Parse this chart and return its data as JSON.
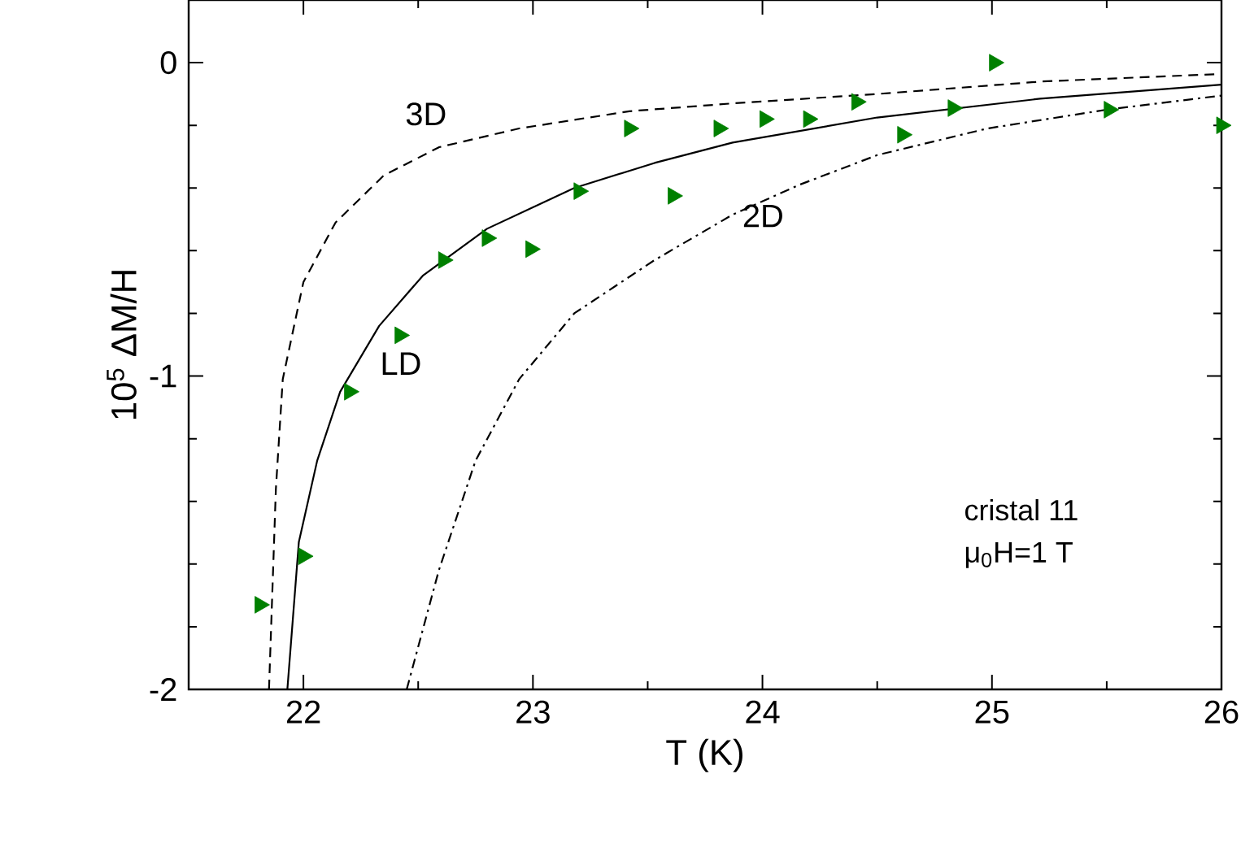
{
  "chart_data": {
    "type": "scatter",
    "xlabel": "T (K)",
    "ylabel": "10$^{5}$ ΔM/H",
    "xlim": [
      21.5,
      26
    ],
    "ylim": [
      -2,
      0.2
    ],
    "xticks": [
      22,
      23,
      24,
      25,
      26
    ],
    "yticks": [
      -2,
      -1,
      0
    ],
    "grid": false,
    "legend": false,
    "marker": "triangle",
    "annotations": [
      "cristal 11",
      "μ$_{0}$H=1 T"
    ],
    "series": [
      {
        "color": "#008000",
        "x": [
          21.81,
          22.0,
          22.2,
          22.42,
          22.61,
          22.8,
          22.99,
          23.2,
          23.42,
          23.61,
          23.81,
          24.01,
          24.2,
          24.41,
          24.61,
          24.83,
          25.01,
          25.51,
          26.0
        ],
        "values": [
          -1.73,
          -1.575,
          -1.05,
          -0.87,
          -0.63,
          -0.56,
          -0.595,
          -0.41,
          -0.21,
          -0.425,
          -0.21,
          -0.18,
          -0.18,
          -0.125,
          -0.23,
          -0.145,
          0.0,
          -0.15,
          -0.2
        ]
      },
      {
        "type": "line",
        "name": "3D",
        "color": "#000000",
        "line_style": "dashed",
        "marker": "none",
        "x": [
          21.85,
          21.88,
          21.91,
          22.0,
          22.14,
          22.35,
          22.59,
          22.94,
          23.42,
          23.87,
          24.5,
          25.22,
          26.0
        ],
        "values": [
          -2.0,
          -1.36,
          -1.01,
          -0.7,
          -0.51,
          -0.36,
          -0.27,
          -0.21,
          -0.155,
          -0.13,
          -0.1,
          -0.06,
          -0.036
        ]
      },
      {
        "type": "line",
        "name": "LD",
        "color": "#000000",
        "line_style": "solid",
        "marker": "none",
        "x": [
          21.93,
          21.98,
          22.06,
          22.16,
          22.33,
          22.52,
          22.8,
          23.18,
          23.53,
          23.87,
          24.5,
          25.21,
          26.0
        ],
        "values": [
          -2.0,
          -1.53,
          -1.27,
          -1.05,
          -0.84,
          -0.68,
          -0.53,
          -0.4,
          -0.32,
          -0.255,
          -0.175,
          -0.115,
          -0.07
        ]
      },
      {
        "type": "line",
        "name": "2D",
        "color": "#000000",
        "line_style": "dashdot",
        "marker": "none",
        "x": [
          22.45,
          22.59,
          22.75,
          22.94,
          23.18,
          23.53,
          23.87,
          24.16,
          24.5,
          24.98,
          25.5,
          26.0
        ],
        "values": [
          -2.0,
          -1.62,
          -1.27,
          -1.01,
          -0.8,
          -0.63,
          -0.485,
          -0.39,
          -0.295,
          -0.21,
          -0.15,
          -0.105
        ]
      }
    ]
  }
}
